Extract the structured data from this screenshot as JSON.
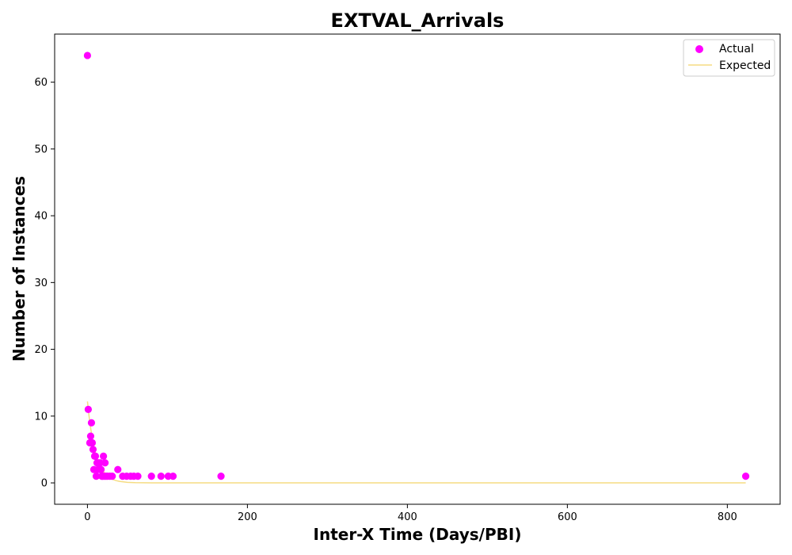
{
  "chart_data": {
    "type": "scatter",
    "title": "EXTVAL_Arrivals",
    "xlabel": "Inter-X Time (Days/PBI)",
    "ylabel": "Number of Instances",
    "xlim": [
      -41,
      866
    ],
    "ylim": [
      -3.2,
      67.2
    ],
    "xticks": [
      0,
      200,
      400,
      600,
      800
    ],
    "yticks": [
      0,
      10,
      20,
      30,
      40,
      50,
      60
    ],
    "grid": false,
    "legend_position": "top-right",
    "series": [
      {
        "name": "Actual",
        "kind": "scatter",
        "color": "#ff00ff",
        "x": [
          0,
          1,
          3,
          4,
          5,
          6,
          7,
          8,
          9,
          10,
          11,
          12,
          13,
          14,
          15,
          16,
          17,
          18,
          19,
          20,
          21,
          22,
          23,
          25,
          28,
          31,
          38,
          44,
          49,
          54,
          58,
          63,
          80,
          92,
          101,
          107,
          167,
          823
        ],
        "y": [
          64,
          11,
          6,
          7,
          9,
          6,
          5,
          2,
          4,
          4,
          1,
          3,
          2,
          3,
          2,
          3,
          2,
          1,
          1,
          4,
          1,
          3,
          1,
          1,
          1,
          1,
          2,
          1,
          1,
          1,
          1,
          1,
          1,
          1,
          1,
          1,
          1,
          1
        ]
      },
      {
        "name": "Expected",
        "kind": "line",
        "color": "#f5dc82",
        "x": [
          0,
          2,
          4,
          6,
          8,
          10,
          12,
          14,
          16,
          18,
          20,
          24,
          28,
          32,
          36,
          40,
          50,
          60,
          80,
          100,
          200,
          400,
          600,
          800,
          823
        ],
        "y": [
          12.2,
          10.0,
          8.2,
          6.7,
          5.5,
          4.5,
          3.7,
          3.0,
          2.5,
          2.0,
          1.7,
          1.1,
          0.75,
          0.5,
          0.34,
          0.23,
          0.08,
          0.03,
          0.0,
          0.0,
          0.0,
          0.0,
          0.0,
          0.0,
          0.0
        ]
      }
    ]
  }
}
